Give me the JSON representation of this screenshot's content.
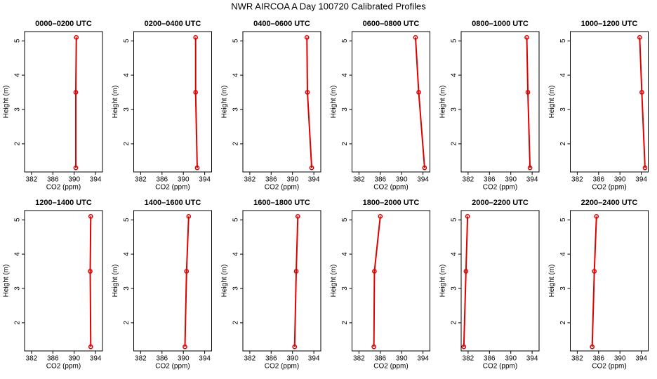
{
  "title": "NWR AIRCOA A  Day 100720  Calibrated Profiles",
  "chart_data": [
    {
      "type": "line",
      "title": "0000–0200 UTC",
      "x_label": "CO2 (ppm)",
      "y_label": "Height (m)",
      "color": "#e00000",
      "x": [
        390.3,
        390.3,
        390.4
      ],
      "y": [
        1.3,
        3.5,
        5.1
      ],
      "xlim": [
        380.7,
        395.3
      ],
      "ylim": [
        1.18,
        5.27
      ],
      "xticks": [
        382,
        386,
        390,
        394
      ],
      "yticks": [
        2,
        3,
        4,
        5
      ]
    },
    {
      "type": "line",
      "title": "0200–0400 UTC",
      "x_label": "CO2 (ppm)",
      "y_label": "Height (m)",
      "color": "#e00000",
      "x": [
        392.6,
        392.3,
        392.3
      ],
      "y": [
        1.3,
        3.5,
        5.1
      ],
      "xlim": [
        380.7,
        395.3
      ],
      "ylim": [
        1.18,
        5.27
      ],
      "xticks": [
        382,
        386,
        390,
        394
      ],
      "yticks": [
        2,
        3,
        4,
        5
      ]
    },
    {
      "type": "line",
      "title": "0400–0600 UTC",
      "x_label": "CO2 (ppm)",
      "y_label": "Height (m)",
      "color": "#e00000",
      "x": [
        393.6,
        392.8,
        392.7
      ],
      "y": [
        1.3,
        3.5,
        5.1
      ],
      "xlim": [
        380.7,
        395.3
      ],
      "ylim": [
        1.18,
        5.27
      ],
      "xticks": [
        382,
        386,
        390,
        394
      ],
      "yticks": [
        2,
        3,
        4,
        5
      ]
    },
    {
      "type": "line",
      "title": "0600–0800 UTC",
      "x_label": "CO2 (ppm)",
      "y_label": "Height (m)",
      "color": "#e00000",
      "x": [
        394.3,
        393.2,
        392.6
      ],
      "y": [
        1.3,
        3.5,
        5.1
      ],
      "xlim": [
        380.7,
        395.3
      ],
      "ylim": [
        1.18,
        5.27
      ],
      "xticks": [
        382,
        386,
        390,
        394
      ],
      "yticks": [
        2,
        3,
        4,
        5
      ]
    },
    {
      "type": "line",
      "title": "0800–1000 UTC",
      "x_label": "CO2 (ppm)",
      "y_label": "Height (m)",
      "color": "#e00000",
      "x": [
        393.6,
        393.2,
        393.0
      ],
      "y": [
        1.3,
        3.5,
        5.1
      ],
      "xlim": [
        380.7,
        395.3
      ],
      "ylim": [
        1.18,
        5.27
      ],
      "xticks": [
        382,
        386,
        390,
        394
      ],
      "yticks": [
        2,
        3,
        4,
        5
      ]
    },
    {
      "type": "line",
      "title": "1000–1200 UTC",
      "x_label": "CO2 (ppm)",
      "y_label": "Height (m)",
      "color": "#e00000",
      "x": [
        394.7,
        394.1,
        393.7
      ],
      "y": [
        1.3,
        3.5,
        5.1
      ],
      "xlim": [
        380.7,
        395.3
      ],
      "ylim": [
        1.18,
        5.27
      ],
      "xticks": [
        382,
        386,
        390,
        394
      ],
      "yticks": [
        2,
        3,
        4,
        5
      ]
    },
    {
      "type": "line",
      "title": "1200–1400 UTC",
      "x_label": "CO2 (ppm)",
      "y_label": "Height (m)",
      "color": "#e00000",
      "x": [
        393.1,
        393.0,
        393.1
      ],
      "y": [
        1.3,
        3.5,
        5.1
      ],
      "xlim": [
        380.7,
        395.3
      ],
      "ylim": [
        1.18,
        5.27
      ],
      "xticks": [
        382,
        386,
        390,
        394
      ],
      "yticks": [
        2,
        3,
        4,
        5
      ]
    },
    {
      "type": "line",
      "title": "1400–1600 UTC",
      "x_label": "CO2 (ppm)",
      "y_label": "Height (m)",
      "color": "#e00000",
      "x": [
        390.3,
        390.6,
        391.0
      ],
      "y": [
        1.3,
        3.5,
        5.1
      ],
      "xlim": [
        380.7,
        395.3
      ],
      "ylim": [
        1.18,
        5.27
      ],
      "xticks": [
        382,
        386,
        390,
        394
      ],
      "yticks": [
        2,
        3,
        4,
        5
      ]
    },
    {
      "type": "line",
      "title": "1600–1800 UTC",
      "x_label": "CO2 (ppm)",
      "y_label": "Height (m)",
      "color": "#e00000",
      "x": [
        390.4,
        390.7,
        391.0
      ],
      "y": [
        1.3,
        3.5,
        5.1
      ],
      "xlim": [
        380.7,
        395.3
      ],
      "ylim": [
        1.18,
        5.27
      ],
      "xticks": [
        382,
        386,
        390,
        394
      ],
      "yticks": [
        2,
        3,
        4,
        5
      ]
    },
    {
      "type": "line",
      "title": "1800–2000 UTC",
      "x_label": "CO2 (ppm)",
      "y_label": "Height (m)",
      "color": "#e00000",
      "x": [
        384.8,
        384.9,
        386.0
      ],
      "y": [
        1.3,
        3.5,
        5.1
      ],
      "xlim": [
        380.7,
        395.3
      ],
      "ylim": [
        1.18,
        5.27
      ],
      "xticks": [
        382,
        386,
        390,
        394
      ],
      "yticks": [
        2,
        3,
        4,
        5
      ]
    },
    {
      "type": "line",
      "title": "2000–2200 UTC",
      "x_label": "CO2 (ppm)",
      "y_label": "Height (m)",
      "color": "#e00000",
      "x": [
        381.2,
        381.6,
        381.9
      ],
      "y": [
        1.3,
        3.5,
        5.1
      ],
      "xlim": [
        380.7,
        395.3
      ],
      "ylim": [
        1.18,
        5.27
      ],
      "xticks": [
        382,
        386,
        390,
        394
      ],
      "yticks": [
        2,
        3,
        4,
        5
      ]
    },
    {
      "type": "line",
      "title": "2200–2400 UTC",
      "x_label": "CO2 (ppm)",
      "y_label": "Height (m)",
      "color": "#e00000",
      "x": [
        384.8,
        385.2,
        385.6
      ],
      "y": [
        1.3,
        3.5,
        5.1
      ],
      "xlim": [
        380.7,
        395.3
      ],
      "ylim": [
        1.18,
        5.27
      ],
      "xticks": [
        382,
        386,
        390,
        394
      ],
      "yticks": [
        2,
        3,
        4,
        5
      ]
    }
  ]
}
